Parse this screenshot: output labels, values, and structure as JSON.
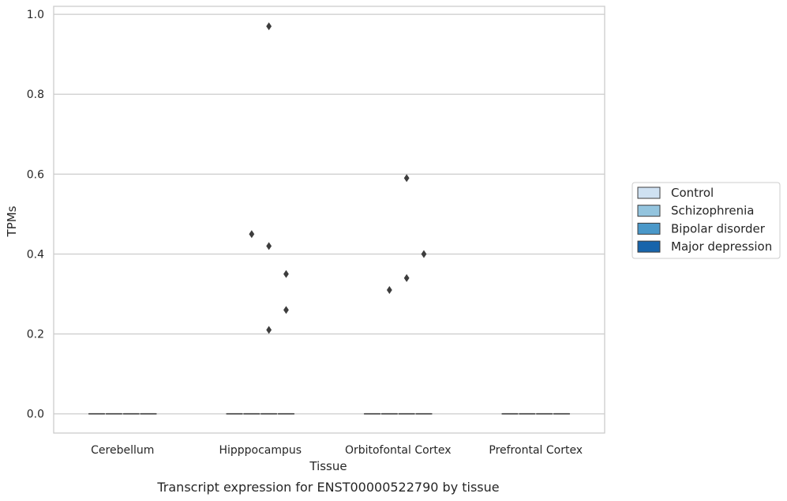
{
  "caption": "Transcript expression for ENST00000522790 by tissue",
  "chart_data": {
    "type": "box",
    "xlabel": "Tissue",
    "ylabel": "TPMs",
    "ylim": [
      -0.048,
      1.02
    ],
    "yticks": [
      0.0,
      0.2,
      0.4,
      0.6,
      0.8,
      1.0
    ],
    "ytick_labels": [
      "0.0",
      "0.2",
      "0.4",
      "0.6",
      "0.8",
      "1.0"
    ],
    "grid": true,
    "categories": [
      "Cerebellum",
      "Hipppocampus",
      "Orbitofontal Cortex",
      "Prefrontal Cortex"
    ],
    "series": [
      {
        "name": "Control",
        "color": "#cfe1f2"
      },
      {
        "name": "Schizophrenia",
        "color": "#93c4de"
      },
      {
        "name": "Bipolar disorder",
        "color": "#4a98c9"
      },
      {
        "name": "Major depression",
        "color": "#1764ab"
      }
    ],
    "boxes": [
      {
        "category": 0,
        "series": 0,
        "q1": 0,
        "median": 0,
        "q3": 0,
        "whisker_low": 0,
        "whisker_high": 0,
        "outliers": []
      },
      {
        "category": 0,
        "series": 1,
        "q1": 0,
        "median": 0,
        "q3": 0,
        "whisker_low": 0,
        "whisker_high": 0,
        "outliers": []
      },
      {
        "category": 0,
        "series": 2,
        "q1": 0,
        "median": 0,
        "q3": 0,
        "whisker_low": 0,
        "whisker_high": 0,
        "outliers": []
      },
      {
        "category": 0,
        "series": 3,
        "q1": 0,
        "median": 0,
        "q3": 0,
        "whisker_low": 0,
        "whisker_high": 0,
        "outliers": []
      },
      {
        "category": 1,
        "series": 0,
        "q1": 0,
        "median": 0,
        "q3": 0,
        "whisker_low": 0,
        "whisker_high": 0,
        "outliers": []
      },
      {
        "category": 1,
        "series": 1,
        "q1": 0,
        "median": 0,
        "q3": 0,
        "whisker_low": 0,
        "whisker_high": 0,
        "outliers": [
          0.45
        ]
      },
      {
        "category": 1,
        "series": 2,
        "q1": 0,
        "median": 0,
        "q3": 0,
        "whisker_low": 0,
        "whisker_high": 0,
        "outliers": [
          0.97,
          0.42,
          0.21
        ]
      },
      {
        "category": 1,
        "series": 3,
        "q1": 0,
        "median": 0,
        "q3": 0,
        "whisker_low": 0,
        "whisker_high": 0,
        "outliers": [
          0.35,
          0.26
        ]
      },
      {
        "category": 2,
        "series": 0,
        "q1": 0,
        "median": 0,
        "q3": 0,
        "whisker_low": 0,
        "whisker_high": 0,
        "outliers": []
      },
      {
        "category": 2,
        "series": 1,
        "q1": 0,
        "median": 0,
        "q3": 0,
        "whisker_low": 0,
        "whisker_high": 0,
        "outliers": [
          0.31
        ]
      },
      {
        "category": 2,
        "series": 2,
        "q1": 0,
        "median": 0,
        "q3": 0,
        "whisker_low": 0,
        "whisker_high": 0,
        "outliers": [
          0.59,
          0.34
        ]
      },
      {
        "category": 2,
        "series": 3,
        "q1": 0,
        "median": 0,
        "q3": 0,
        "whisker_low": 0,
        "whisker_high": 0,
        "outliers": [
          0.4
        ]
      },
      {
        "category": 3,
        "series": 0,
        "q1": 0,
        "median": 0,
        "q3": 0,
        "whisker_low": 0,
        "whisker_high": 0,
        "outliers": []
      },
      {
        "category": 3,
        "series": 1,
        "q1": 0,
        "median": 0,
        "q3": 0,
        "whisker_low": 0,
        "whisker_high": 0,
        "outliers": []
      },
      {
        "category": 3,
        "series": 2,
        "q1": 0,
        "median": 0,
        "q3": 0,
        "whisker_low": 0,
        "whisker_high": 0,
        "outliers": []
      },
      {
        "category": 3,
        "series": 3,
        "q1": 0,
        "median": 0,
        "q3": 0,
        "whisker_low": 0,
        "whisker_high": 0,
        "outliers": []
      }
    ],
    "legend_position": "center-right, outside plot"
  }
}
